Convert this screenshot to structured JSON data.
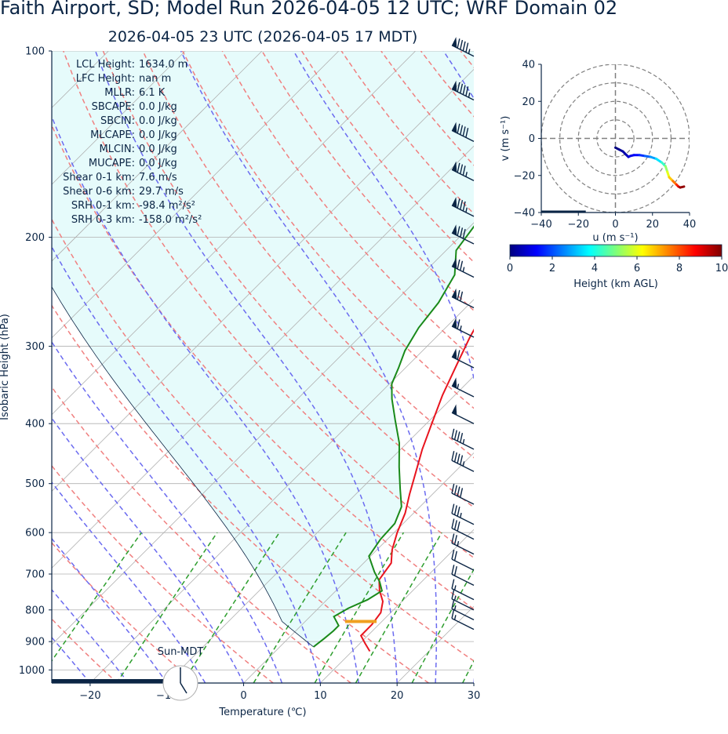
{
  "header": {
    "title": "Faith Airport, SD; Model Run 2026-04-05 12 UTC; WRF Domain 02",
    "subtitle": "2026-04-05 23 UTC  (2026-04-05 17 MDT)"
  },
  "indices": [
    {
      "label": "LCL Height:",
      "value": "1634.0 m"
    },
    {
      "label": "LFC Height:",
      "value": "nan m"
    },
    {
      "label": "MLLR:",
      "value": "6.1 K"
    },
    {
      "label": "SBCAPE:",
      "value": "0.0 J/kg"
    },
    {
      "label": "SBCIN:",
      "value": "0.0 J/kg"
    },
    {
      "label": "MLCAPE:",
      "value": "0.0 J/kg"
    },
    {
      "label": "MLCIN:",
      "value": "0.0 J/kg"
    },
    {
      "label": "MUCAPE:",
      "value": "0.0 J/kg"
    },
    {
      "label": "Shear 0-1 km:",
      "value": "7.6 m/s"
    },
    {
      "label": "Shear 0-6 km:",
      "value": "29.7 m/s"
    },
    {
      "label": "SRH 0-1 km:",
      "value": "-98.4 m²/s²"
    },
    {
      "label": "SRH 0-3 km:",
      "value": "-158.0 m²/s²"
    }
  ],
  "sun_label": "Sun-MDT",
  "colors": {
    "temperature": "#e8141e",
    "dewpoint": "#1a8a1a",
    "parcel_fill": "#e6fbfb",
    "dry_adiabat": "#f08080",
    "moist_adiabat": "#6b6bf0",
    "mixing_ratio": "#2e9e2e",
    "navy": "#0b2545",
    "lcl_marker": "#f0a020"
  },
  "chart_data": [
    {
      "type": "skew-t",
      "xlabel": "Temperature (℃)",
      "ylabel": "Isobaric Height (hPa)",
      "xlim": [
        -25,
        30
      ],
      "ylim": [
        1050,
        100
      ],
      "x_ticks": [
        -20,
        -10,
        0,
        10,
        20,
        30
      ],
      "x_tick_labels": [
        "−20",
        "−10",
        "0",
        "10",
        "20",
        "30"
      ],
      "y_ticks": [
        100,
        200,
        300,
        400,
        500,
        600,
        700,
        800,
        900,
        1000
      ],
      "y_tick_labels": [
        "100",
        "200",
        "300",
        "400",
        "500",
        "600",
        "700",
        "800",
        "900",
        "1000"
      ],
      "grid": true,
      "temperature": {
        "p": [
          933,
          905,
          880,
          845,
          808,
          775,
          745,
          715,
          672,
          640,
          600,
          558,
          520,
          480,
          440,
          400,
          360,
          320,
          290,
          265,
          246,
          222,
          200,
          185,
          162,
          143,
          126,
          113,
          103
        ],
        "t": [
          12.3,
          10.6,
          9.1,
          9.1,
          8.7,
          7.5,
          5.7,
          4.2,
          3.6,
          2.0,
          0.4,
          -1.1,
          -3.0,
          -5.0,
          -7.2,
          -9.3,
          -11.6,
          -13.8,
          -15.6,
          -17.0,
          -17.9,
          -18.2,
          -15.8,
          -13.6,
          -9.1,
          -4.8,
          -2.3,
          -0.1,
          1.4
        ]
      },
      "dewpoint": {
        "p": [
          918,
          890,
          865,
          848,
          820,
          795,
          770,
          745,
          720,
          695,
          655,
          615,
          580,
          545,
          510,
          470,
          430,
          395,
          365,
          345,
          325,
          305,
          280,
          255,
          230,
          210,
          190,
          170,
          150,
          130,
          112,
          100
        ],
        "td": [
          4.4,
          4.7,
          4.9,
          4.9,
          3.1,
          3.9,
          5.3,
          6.0,
          4.5,
          2.6,
          -0.2,
          -0.9,
          -1.1,
          -2.4,
          -4.9,
          -7.9,
          -11.0,
          -14.5,
          -17.7,
          -19.7,
          -20.9,
          -22.3,
          -23.5,
          -24.2,
          -25.7,
          -28.7,
          -29.6,
          -31.3,
          -32.4,
          -32.6,
          -33.0,
          -33.0
        ]
      },
      "lcl": {
        "p": 835,
        "t_range": [
          5.2,
          9.3
        ]
      },
      "wind_barbs": [
        {
          "p": 102,
          "speed_kt": 95
        },
        {
          "p": 120,
          "speed_kt": 95
        },
        {
          "p": 140,
          "speed_kt": 90
        },
        {
          "p": 162,
          "speed_kt": 85
        },
        {
          "p": 185,
          "speed_kt": 85
        },
        {
          "p": 205,
          "speed_kt": 80
        },
        {
          "p": 232,
          "speed_kt": 75
        },
        {
          "p": 260,
          "speed_kt": 70
        },
        {
          "p": 290,
          "speed_kt": 65
        },
        {
          "p": 325,
          "speed_kt": 60
        },
        {
          "p": 362,
          "speed_kt": 55
        },
        {
          "p": 400,
          "speed_kt": 50
        },
        {
          "p": 440,
          "speed_kt": 45
        },
        {
          "p": 478,
          "speed_kt": 45
        },
        {
          "p": 540,
          "speed_kt": 40
        },
        {
          "p": 582,
          "speed_kt": 35
        },
        {
          "p": 615,
          "speed_kt": 30
        },
        {
          "p": 650,
          "speed_kt": 25
        },
        {
          "p": 690,
          "speed_kt": 20
        },
        {
          "p": 730,
          "speed_kt": 20
        },
        {
          "p": 770,
          "speed_kt": 15
        },
        {
          "p": 800,
          "speed_kt": 15
        },
        {
          "p": 830,
          "speed_kt": 15
        },
        {
          "p": 860,
          "speed_kt": 15
        }
      ]
    },
    {
      "type": "hodograph",
      "xlabel": "u (m s⁻¹)",
      "ylabel": "v (m s⁻¹)",
      "xlim": [
        -40,
        40
      ],
      "ylim": [
        -40,
        40
      ],
      "x_ticks": [
        -40,
        -20,
        0,
        20,
        40
      ],
      "x_tick_labels": [
        "−40",
        "−20",
        "0",
        "20",
        "40"
      ],
      "y_ticks": [
        -40,
        -20,
        0,
        20,
        40
      ],
      "y_tick_labels": [
        "−40",
        "−20",
        "0",
        "20",
        "40"
      ],
      "rings": [
        10,
        20,
        30,
        40
      ],
      "points": [
        {
          "u": 0,
          "v": -5,
          "h": 0.0
        },
        {
          "u": 2,
          "v": -6,
          "h": 0.2
        },
        {
          "u": 4,
          "v": -7,
          "h": 0.4
        },
        {
          "u": 6,
          "v": -9,
          "h": 0.6
        },
        {
          "u": 7,
          "v": -10,
          "h": 0.8
        },
        {
          "u": 8,
          "v": -9.5,
          "h": 1.0
        },
        {
          "u": 10,
          "v": -9,
          "h": 1.3
        },
        {
          "u": 13,
          "v": -9,
          "h": 1.7
        },
        {
          "u": 16,
          "v": -9.5,
          "h": 2.2
        },
        {
          "u": 19,
          "v": -10,
          "h": 2.8
        },
        {
          "u": 22,
          "v": -11,
          "h": 3.5
        },
        {
          "u": 25,
          "v": -13,
          "h": 4.3
        },
        {
          "u": 27,
          "v": -15,
          "h": 5.2
        },
        {
          "u": 28,
          "v": -18,
          "h": 6.0
        },
        {
          "u": 29,
          "v": -21,
          "h": 6.8
        },
        {
          "u": 31,
          "v": -23,
          "h": 7.6
        },
        {
          "u": 33,
          "v": -25,
          "h": 8.4
        },
        {
          "u": 34,
          "v": -26,
          "h": 9.2
        },
        {
          "u": 35,
          "v": -26.5,
          "h": 9.8
        },
        {
          "u": 37,
          "v": -26,
          "h": 10.0
        }
      ]
    },
    {
      "type": "colorbar",
      "xlabel": "Height (km AGL)",
      "range": [
        0,
        10
      ],
      "ticks": [
        "0",
        "2",
        "4",
        "6",
        "8",
        "10"
      ],
      "colormap": "jet"
    }
  ]
}
